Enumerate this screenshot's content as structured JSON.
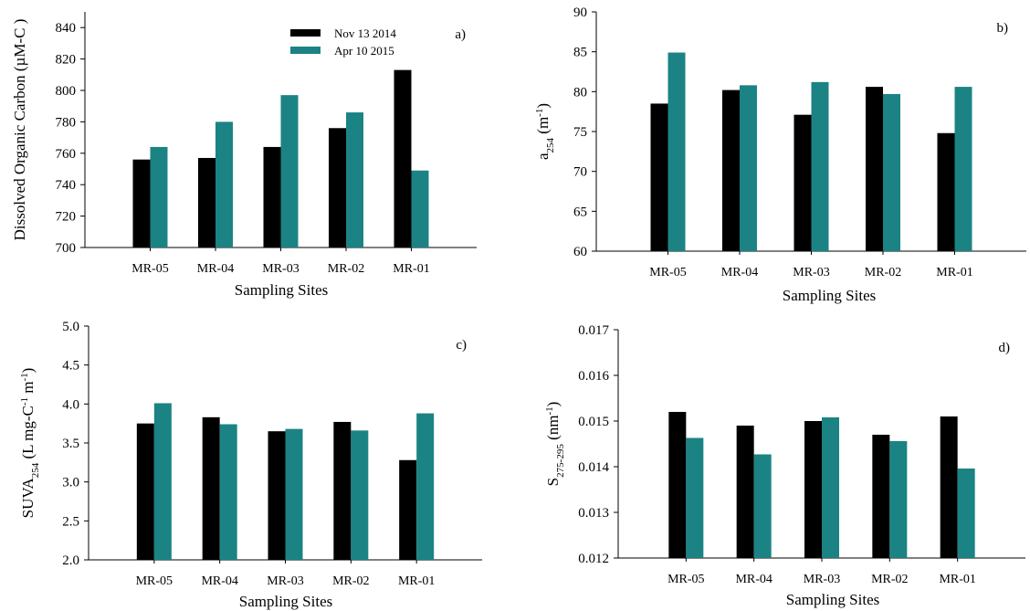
{
  "colors": {
    "s1": "#000000",
    "s2": "#1b8383"
  },
  "chart_data": [
    {
      "type": "bar",
      "panel": "a)",
      "categories": [
        "MR-05",
        "MR-04",
        "MR-03",
        "MR-02",
        "MR-01"
      ],
      "series": [
        {
          "name": "Nov 13 2014",
          "values": [
            756,
            757,
            764,
            776,
            813
          ]
        },
        {
          "name": "Apr 10 2015",
          "values": [
            764,
            780,
            797,
            786,
            749
          ]
        }
      ],
      "ylabel": "Dissolved Organic Carbon (µM-C )",
      "xlabel": "Sampling Sites",
      "ylim": [
        700,
        850
      ],
      "yticks": [
        700,
        720,
        740,
        760,
        780,
        800,
        820,
        840
      ],
      "legend": "top-center"
    },
    {
      "type": "bar",
      "panel": "b)",
      "categories": [
        "MR-05",
        "MR-04",
        "MR-03",
        "MR-02",
        "MR-01"
      ],
      "series": [
        {
          "name": "Nov 13 2014",
          "values": [
            78.5,
            80.2,
            77.1,
            80.6,
            74.8
          ]
        },
        {
          "name": "Apr 10 2015",
          "values": [
            84.9,
            80.8,
            81.2,
            79.7,
            80.6
          ]
        }
      ],
      "ylabel_main": "a",
      "ylabel_sub": "254",
      "ylabel_rest": "(m",
      "ylabel_sup": "-1",
      "ylabel_close": ")",
      "xlabel": "Sampling Sites",
      "ylim": [
        60,
        90
      ],
      "yticks": [
        60,
        65,
        70,
        75,
        80,
        85,
        90
      ]
    },
    {
      "type": "bar",
      "panel": "c)",
      "categories": [
        "MR-05",
        "MR-04",
        "MR-03",
        "MR-02",
        "MR-01"
      ],
      "series": [
        {
          "name": "Nov 13 2014",
          "values": [
            3.75,
            3.83,
            3.65,
            3.77,
            3.28
          ]
        },
        {
          "name": "Apr 10 2015",
          "values": [
            4.01,
            3.74,
            3.68,
            3.66,
            3.88
          ]
        }
      ],
      "ylabel_main": "SUVA",
      "ylabel_sub": "254",
      "ylabel_rest": "(L mg-C",
      "ylabel_sup": "-1",
      "ylabel_mid": " m",
      "ylabel_sup2": "-1",
      "ylabel_close": ")",
      "xlabel": "Sampling Sites",
      "ylim": [
        2.0,
        5.0
      ],
      "yticks": [
        "2.0",
        "2.5",
        "3.0",
        "3.5",
        "4.0",
        "4.5",
        "5.0"
      ]
    },
    {
      "type": "bar",
      "panel": "d)",
      "categories": [
        "MR-05",
        "MR-04",
        "MR-03",
        "MR-02",
        "MR-01"
      ],
      "series": [
        {
          "name": "Nov 13 2014",
          "values": [
            0.0152,
            0.0149,
            0.015,
            0.0147,
            0.0151
          ]
        },
        {
          "name": "Apr 10 2015",
          "values": [
            0.01463,
            0.01427,
            0.01508,
            0.01456,
            0.01396
          ]
        }
      ],
      "ylabel_main": "S",
      "ylabel_sub": "275-295",
      "ylabel_rest": "(nm",
      "ylabel_sup": "-1",
      "ylabel_close": ")",
      "xlabel": "Sampling Sites",
      "ylim": [
        0.012,
        0.017
      ],
      "yticks": [
        "0.012",
        "0.013",
        "0.014",
        "0.015",
        "0.016",
        "0.017"
      ]
    }
  ]
}
